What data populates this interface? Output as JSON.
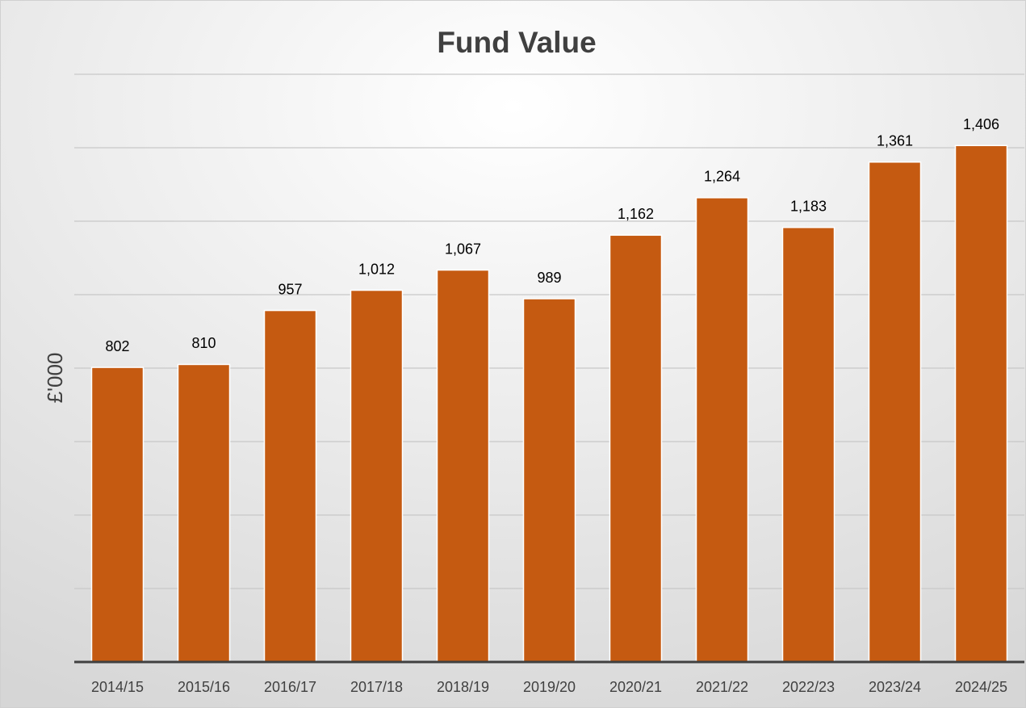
{
  "chart_data": {
    "type": "bar",
    "title": "Fund Value",
    "y_label": "£'000",
    "categories": [
      "2014/15",
      "2015/16",
      "2016/17",
      "2017/18",
      "2018/19",
      "2019/20",
      "2020/21",
      "2021/22",
      "2022/23",
      "2023/24",
      "2024/25"
    ],
    "values": [
      802,
      810,
      957,
      1012,
      1067,
      989,
      1162,
      1264,
      1183,
      1361,
      1406
    ],
    "value_labels": [
      "802",
      "810",
      "957",
      "1,012",
      "1,067",
      "989",
      "1,162",
      "1,264",
      "1,183",
      "1,361",
      "1,406"
    ],
    "color": "#c55a11",
    "ylim": [
      0,
      1600
    ],
    "yticks": [
      0,
      200,
      400,
      600,
      800,
      1000,
      1200,
      1400,
      1600
    ],
    "grid": true
  }
}
